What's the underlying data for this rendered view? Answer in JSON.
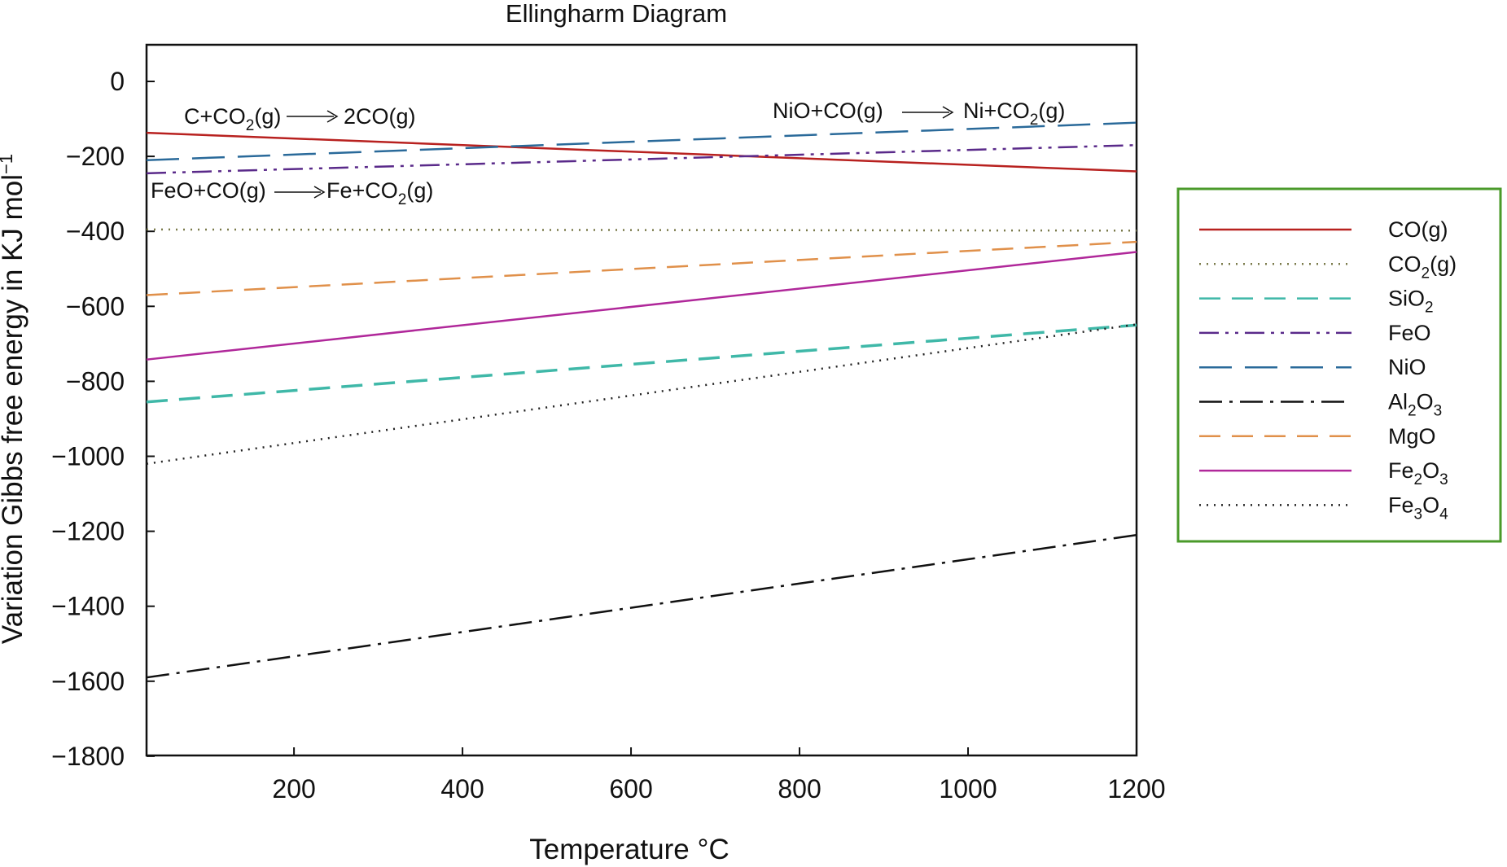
{
  "chart_data": {
    "type": "line",
    "title": "Ellingharm Diagram",
    "xlabel": "Temperature °C",
    "ylabel": "Variation Gibbs free energy in KJ mol",
    "ylabel_superscript": "−1",
    "xlim": [
      25,
      1200
    ],
    "ylim": [
      -1800,
      100
    ],
    "x_ticks": [
      200,
      400,
      600,
      800,
      1000,
      1200
    ],
    "x_tick_labels": [
      "200",
      "400",
      "600",
      "800",
      "1000",
      "1200"
    ],
    "y_ticks": [
      0,
      -200,
      -400,
      -600,
      -800,
      -1000,
      -1200,
      -1400,
      -1600,
      -1800
    ],
    "y_tick_labels": [
      "0",
      "−200",
      "−400",
      "−600",
      "−800",
      "−1000",
      "−1200",
      "−1400",
      "−1600",
      "−1800"
    ],
    "grid": false,
    "legend_position": "right",
    "series": [
      {
        "name": "CO(g)",
        "label_main": "CO",
        "label_sub": "",
        "label_tail": "(g)",
        "color": "#b8211f",
        "dash": "solid",
        "x": [
          25,
          1200
        ],
        "y": [
          -137,
          -240
        ]
      },
      {
        "name": "CO2(g)",
        "label_main": "CO",
        "label_sub": "2",
        "label_tail": "(g)",
        "color": "#7a7a4a",
        "dash": "dotted",
        "x": [
          25,
          1200
        ],
        "y": [
          -395,
          -398
        ]
      },
      {
        "name": "SiO2",
        "label_main": "SiO",
        "label_sub": "2",
        "label_tail": "",
        "color": "#3fb8a8",
        "dash": "dashed",
        "x": [
          25,
          1200
        ],
        "y": [
          -855,
          -650
        ]
      },
      {
        "name": "FeO",
        "label_main": "FeO",
        "label_sub": "",
        "label_tail": "",
        "color": "#5a2a8a",
        "dash": "dashdotdot",
        "x": [
          25,
          1200
        ],
        "y": [
          -245,
          -170
        ]
      },
      {
        "name": "NiO",
        "label_main": "NiO",
        "label_sub": "",
        "label_tail": "",
        "color": "#2a6a9a",
        "dash": "longdash",
        "x": [
          25,
          1200
        ],
        "y": [
          -210,
          -110
        ]
      },
      {
        "name": "Al2O3",
        "label_main": "Al",
        "label_sub": "2",
        "label_tail": "O",
        "label_sub2": "3",
        "color": "#111111",
        "dash": "dashdot",
        "x": [
          25,
          1200
        ],
        "y": [
          -1590,
          -1210
        ]
      },
      {
        "name": "MgO",
        "label_main": "MgO",
        "label_sub": "",
        "label_tail": "",
        "color": "#e0904a",
        "dash": "dashed",
        "x": [
          25,
          1200
        ],
        "y": [
          -570,
          -428
        ]
      },
      {
        "name": "Fe2O3",
        "label_main": "Fe",
        "label_sub": "2",
        "label_tail": "O",
        "label_sub2": "3",
        "color": "#b0289a",
        "dash": "solid",
        "x": [
          25,
          1200
        ],
        "y": [
          -742,
          -455
        ]
      },
      {
        "name": "Fe3O4",
        "label_main": "Fe",
        "label_sub": "3",
        "label_tail": "O",
        "label_sub2": "4",
        "color": "#222222",
        "dash": "dotted",
        "x": [
          25,
          1200
        ],
        "y": [
          -1020,
          -648
        ]
      }
    ],
    "annotations": [
      {
        "id": "co-reaction",
        "left": "C+CO",
        "left_sub": "2",
        "left_tail": "(g)",
        "right": "2CO(g)",
        "right_sub": "",
        "right_tail": ""
      },
      {
        "id": "feo-reaction",
        "left": "FeO+CO(g)",
        "left_sub": "",
        "left_tail": "",
        "right": "Fe+CO",
        "right_sub": "2",
        "right_tail": "(g)"
      },
      {
        "id": "nio-reaction",
        "left": "NiO+CO(g)",
        "left_sub": "",
        "left_tail": "",
        "right": "Ni+CO",
        "right_sub": "2",
        "right_tail": "(g)"
      }
    ],
    "colors": {
      "axis": "#111111",
      "legend_border": "#4a9a2a"
    }
  }
}
